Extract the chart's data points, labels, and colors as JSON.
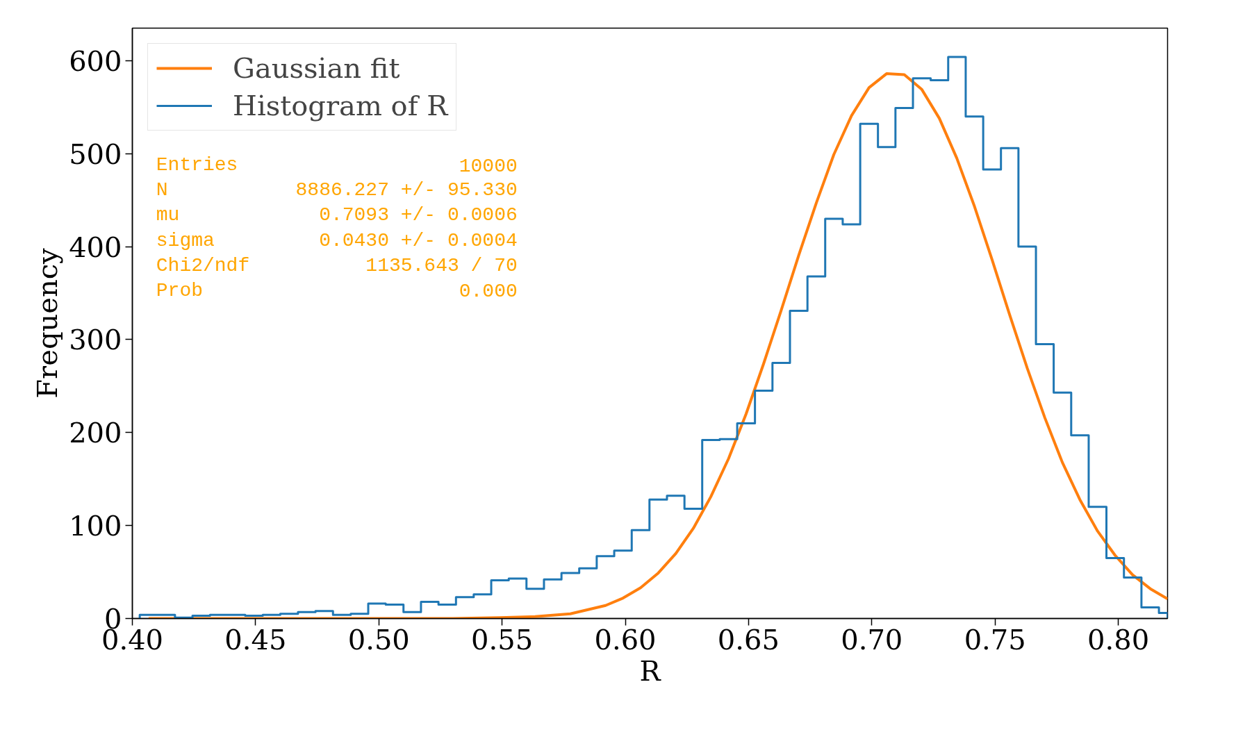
{
  "chart_data": {
    "type": "histogram",
    "xlabel": "R",
    "ylabel": "Frequency",
    "bins": [
      0.403,
      0.4101,
      0.4173,
      0.4244,
      0.4315,
      0.4387,
      0.4458,
      0.4529,
      0.46,
      0.4672,
      0.4743,
      0.4814,
      0.4886,
      0.4957,
      0.5028,
      0.51,
      0.5171,
      0.5242,
      0.5313,
      0.5385,
      0.5456,
      0.5527,
      0.5599,
      0.567,
      0.5741,
      0.5813,
      0.5884,
      0.5955,
      0.6026,
      0.6098,
      0.6169,
      0.624,
      0.6312,
      0.6383,
      0.6454,
      0.6526,
      0.6597,
      0.6668,
      0.6739,
      0.6811,
      0.6882,
      0.6953,
      0.7025,
      0.7096,
      0.7167,
      0.7239,
      0.731,
      0.7381,
      0.7452,
      0.7524,
      0.7595,
      0.7666,
      0.7738,
      0.7809,
      0.788,
      0.7952,
      0.8023,
      0.8094,
      0.8165,
      0.82
    ],
    "series": [
      {
        "name": "Gaussian fit",
        "type": "line",
        "color": "#ff7f0e",
        "x": [
          0.4066,
          0.45,
          0.5,
          0.53,
          0.5492,
          0.5634,
          0.5777,
          0.592,
          0.5991,
          0.6062,
          0.6134,
          0.6205,
          0.6276,
          0.6347,
          0.6419,
          0.649,
          0.6561,
          0.6633,
          0.6704,
          0.6775,
          0.6846,
          0.6918,
          0.6989,
          0.706,
          0.7132,
          0.7203,
          0.7274,
          0.7345,
          0.7417,
          0.7488,
          0.7559,
          0.7631,
          0.7702,
          0.7773,
          0.7844,
          0.7916,
          0.7987,
          0.8058,
          0.813,
          0.82
        ],
        "values": [
          0,
          0,
          0,
          0,
          1,
          2,
          5,
          14,
          22,
          33,
          49,
          70,
          97,
          131,
          172,
          220,
          274,
          332,
          391,
          447,
          499,
          541,
          571,
          586,
          585,
          569,
          538,
          495,
          443,
          386,
          327,
          269,
          216,
          168,
          128,
          94,
          68,
          47,
          32,
          21
        ]
      },
      {
        "name": "Histogram of R",
        "color": "#1f77b4",
        "values": [
          4,
          4,
          1,
          3,
          4,
          4,
          3,
          4,
          5,
          7,
          8,
          4,
          5,
          16,
          15,
          7,
          18,
          15,
          23,
          26,
          41,
          43,
          32,
          42,
          49,
          54,
          67,
          73,
          95,
          128,
          132,
          118,
          192,
          193,
          210,
          245,
          275,
          331,
          368,
          430,
          424,
          532,
          507,
          549,
          581,
          579,
          604,
          540,
          483,
          506,
          400,
          295,
          243,
          197,
          120,
          65,
          44,
          12,
          6
        ]
      }
    ],
    "xlim": [
      0.4,
      0.82
    ],
    "ylim": [
      0,
      635
    ],
    "xticks": [
      {
        "value": 0.4,
        "label": "0.40"
      },
      {
        "value": 0.45,
        "label": "0.45"
      },
      {
        "value": 0.5,
        "label": "0.50"
      },
      {
        "value": 0.55,
        "label": "0.55"
      },
      {
        "value": 0.6,
        "label": "0.60"
      },
      {
        "value": 0.65,
        "label": "0.65"
      },
      {
        "value": 0.7,
        "label": "0.70"
      },
      {
        "value": 0.75,
        "label": "0.75"
      },
      {
        "value": 0.8,
        "label": "0.80"
      }
    ],
    "yticks": [
      0,
      100,
      200,
      300,
      400,
      500,
      600
    ],
    "grid": false,
    "legend": "top left",
    "annotations": [
      "Entries 10000",
      "N 8886.227 +/- 95.330",
      "mu 0.7093 +/- 0.0006",
      "sigma 0.0430 +/- 0.0004",
      "Chi2/ndf 1135.643 / 70",
      "Prob 0.000"
    ]
  }
}
